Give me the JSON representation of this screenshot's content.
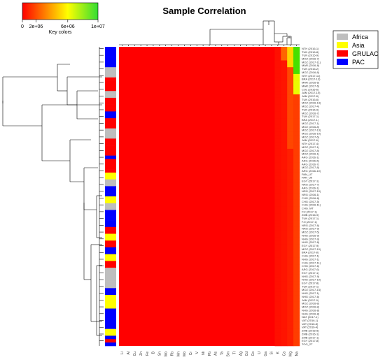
{
  "chart_data": {
    "type": "heatmap",
    "title": "Sample Correlation",
    "key": {
      "label": "Key colors",
      "ticks": [
        "0",
        "2e+06",
        "6e+06",
        "1e+07"
      ],
      "colors": [
        "#ff0000",
        "#ff8000",
        "#ffff00",
        "#33dd33"
      ]
    },
    "legend": {
      "placement": "top-right",
      "items": [
        {
          "name": "Africa",
          "color": "#bebebe"
        },
        {
          "name": "Asia",
          "color": "#ffff00"
        },
        {
          "name": "GRULAC",
          "color": "#ff0000"
        },
        {
          "name": "PAC",
          "color": "#0000ff"
        }
      ]
    },
    "columns": [
      "Li",
      "Al",
      "Cu",
      "Zn",
      "Fe",
      "B",
      "Sn",
      "Mo",
      "Rb",
      "Mn",
      "Mo",
      "Cr",
      "V",
      "Ni",
      "Pb",
      "As",
      "Ta",
      "Sm",
      "Tl",
      "Ag",
      "Cd",
      "Co",
      "U",
      "Ga",
      "Si",
      "K",
      "Ca",
      "Mg",
      "Na"
    ],
    "row_labels": [
      "NTH (2016-1)",
      "TUN (2016-8)",
      "TUN (2015-9)",
      "MOZ (2016-7)",
      "MOZ (2017-11)",
      "MAR (2016-8)",
      "TUN (2016-2)",
      "MOZ (2016-8)",
      "NTH (2017-11)",
      "BRA (2017-13)",
      "MAR (2016-6)",
      "MAR (2017-6)",
      "COL (2016-6)",
      "JAM (2017-10)",
      "JAM (2017-8)",
      "TUN (2016-6)",
      "MOZ (2016-13)",
      "MOZ (2017-4)",
      "TUN (2016-9)",
      "MOZ (2016-7)",
      "TUN (2017-1)",
      "BRA (2017-1)",
      "MOZ (2017-1)",
      "MOZ (2016-8)",
      "MOZ (2017-13)",
      "MOZ (2016-10)",
      "MOZ (2017-6)",
      "JAM (2017-6)",
      "NTH (2017-4)",
      "MOZ (2017-1)",
      "MOZ (2017-8)",
      "MOZ (2016-1)",
      "ARG (2016-1)",
      "ARG (2016-6)",
      "ARG (2016-7)",
      "MOZ (2017-8)",
      "ARG (2016-10)",
      "PAN_UT",
      "PAN_Utl",
      "EGY (2017-1)",
      "NRG (2017-7)",
      "ARG (2016-1)",
      "NRG (2017-10)",
      "NRG (2016-1)",
      "CHG (2016-8)",
      "CHG (2017-5)",
      "CHG (2016-11)",
      "CHG_MT",
      "FIJ (2017-1)",
      "ZMB (2016-9)",
      "TUN (2017-1)",
      "FJI (2017-1)",
      "NRG (2017-6)",
      "NRG (2017-9)",
      "MOZ (2017-5)",
      "NHG (2016-9)",
      "NHG (2017-9)",
      "NHG (2017-8)",
      "EGY (2017-9)",
      "MOZ (2017-10)",
      "BRA (2017-8)",
      "CHG (2017-1)",
      "NHG (2017-1)",
      "CHG (2017-11)",
      "CHG (2017-6)",
      "ARG (2017-6)",
      "EGY (2017-1)",
      "NHG (2017-9)",
      "NHG (2017-10)",
      "EGY (2017-8)",
      "TUN (2017-1)",
      "MOZ (2017-14)",
      "NHG (2017-1)",
      "NHG (2017-6)",
      "JAM (2017-9)",
      "MOZ (2016-8)",
      "MOZ (2016-8)",
      "NHG (2016-8)",
      "NHG (2016-8)",
      "NAT (2017-1)",
      "VAT (2016-1)",
      "VAT (2016-8)",
      "VAT (2016-4)",
      "ZMB (2016-8)",
      "ZMB (2016-1)",
      "ZMB (2017-1)",
      "EGY (2017-8)",
      "TOG_2T",
      "TOG_2T",
      "NHG (2016-8)",
      "NHG (2017-4)",
      "ZRB (2017-1)",
      "EGY (2017-6)",
      "GLB (2017-1)"
    ],
    "row_groups_pattern": "mixed Africa / Asia / GRULAC / PAC annotation strip",
    "value_scale": [
      0,
      10000000
    ]
  }
}
